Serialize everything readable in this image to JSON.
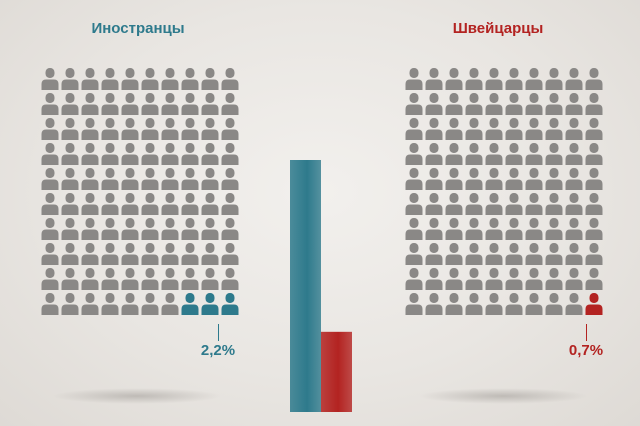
{
  "groups": [
    {
      "title": "Иностранцы",
      "percent_label": "2,2%",
      "highlighted": 3,
      "color": "#2e7a8c"
    },
    {
      "title": "Швейцарцы",
      "percent_label": "0,7%",
      "highlighted": 1,
      "color": "#b32321"
    }
  ],
  "icon_color": "#8a8886",
  "icon_name": "person-icon",
  "chart_data": {
    "type": "bar",
    "categories": [
      "Иностранцы",
      "Швейцарцы"
    ],
    "values": [
      2.2,
      0.7
    ],
    "colors": [
      "#2e7a8c",
      "#b32321"
    ],
    "title": "",
    "xlabel": "",
    "ylabel": "",
    "ylim": [
      0,
      2.2
    ],
    "grid": false
  }
}
